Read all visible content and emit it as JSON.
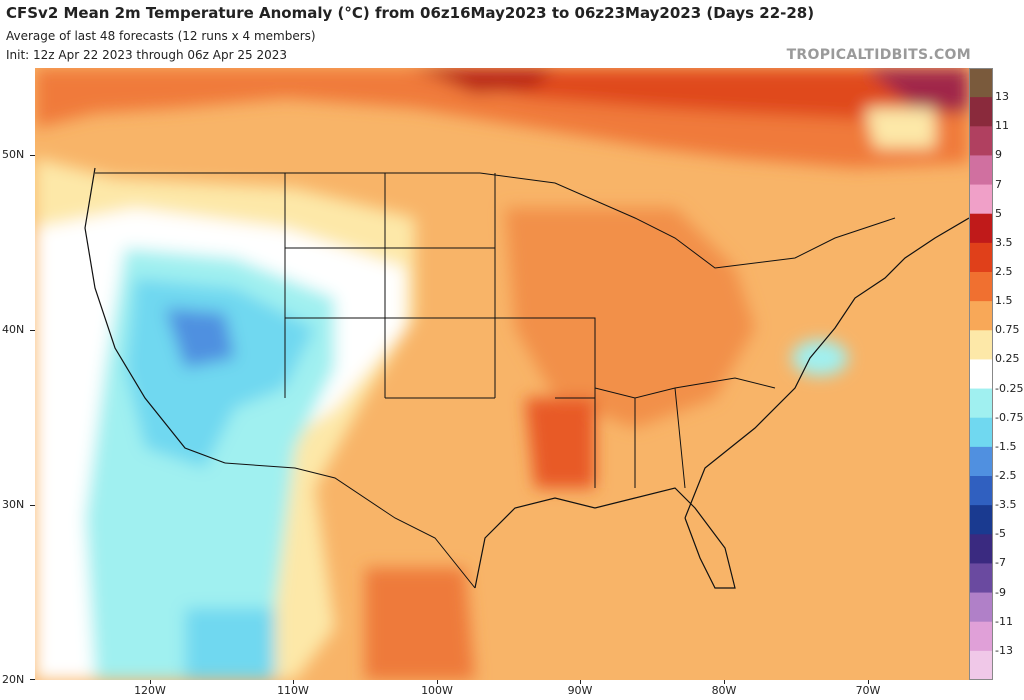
{
  "header": {
    "title": "CFSv2 Mean 2m Temperature Anomaly (°C) from 06z16May2023 to 06z23May2023 (Days 22-28)",
    "subtitle": "Average of last 48 forecasts (12 runs x 4 members)",
    "init": "Init: 12z Apr 22 2023 through 06z Apr 25 2023",
    "brand": "TROPICALTIDBITS.COM"
  },
  "map": {
    "region": "Contiguous United States, Mexico and southern Canada",
    "variable": "2m Temperature Anomaly",
    "units": "°C",
    "lat_range": [
      20,
      55
    ],
    "lon_range": [
      -128,
      -63
    ],
    "lat_ticks": [
      "50N",
      "40N",
      "30N",
      "20N"
    ],
    "lat_tick_values": [
      50,
      40,
      30,
      20
    ],
    "lon_ticks": [
      "120W",
      "110W",
      "100W",
      "90W",
      "80W",
      "70W"
    ],
    "lon_tick_values": [
      -120,
      -110,
      -100,
      -90,
      -80,
      -70
    ]
  },
  "legend": {
    "labels": [
      "13",
      "11",
      "9",
      "7",
      "5",
      "3.5",
      "2.5",
      "1.5",
      "0.75",
      "0.25",
      "-0.25",
      "-0.75",
      "-1.5",
      "-2.5",
      "-3.5",
      "-5",
      "-7",
      "-9",
      "-11",
      "-13"
    ],
    "colors": [
      "#7a5a3c",
      "#8a2a3c",
      "#b04060",
      "#d070a0",
      "#f0a0c8",
      "#c01a1a",
      "#e0401a",
      "#f07030",
      "#f8a858",
      "#fde8a8",
      "#ffffff",
      "#a0f0f0",
      "#70d8f0",
      "#5090e0",
      "#3060c0",
      "#1a3a90",
      "#3a2a80",
      "#6a4aa0",
      "#b080c8",
      "#e0a0d8",
      "#f0c8e8"
    ]
  },
  "colors": {
    "warm_strong": "#e0401a",
    "warm_moderate": "#f07030",
    "warm_weak": "#f8a858",
    "warm_slight": "#fde8a8",
    "neutral": "#ffffff",
    "cool_slight": "#a0f0f0",
    "cool_moderate": "#70d8f0",
    "cool_strong": "#5090e0",
    "boundary": "#111111",
    "brand_text": "#9a9a9a"
  }
}
